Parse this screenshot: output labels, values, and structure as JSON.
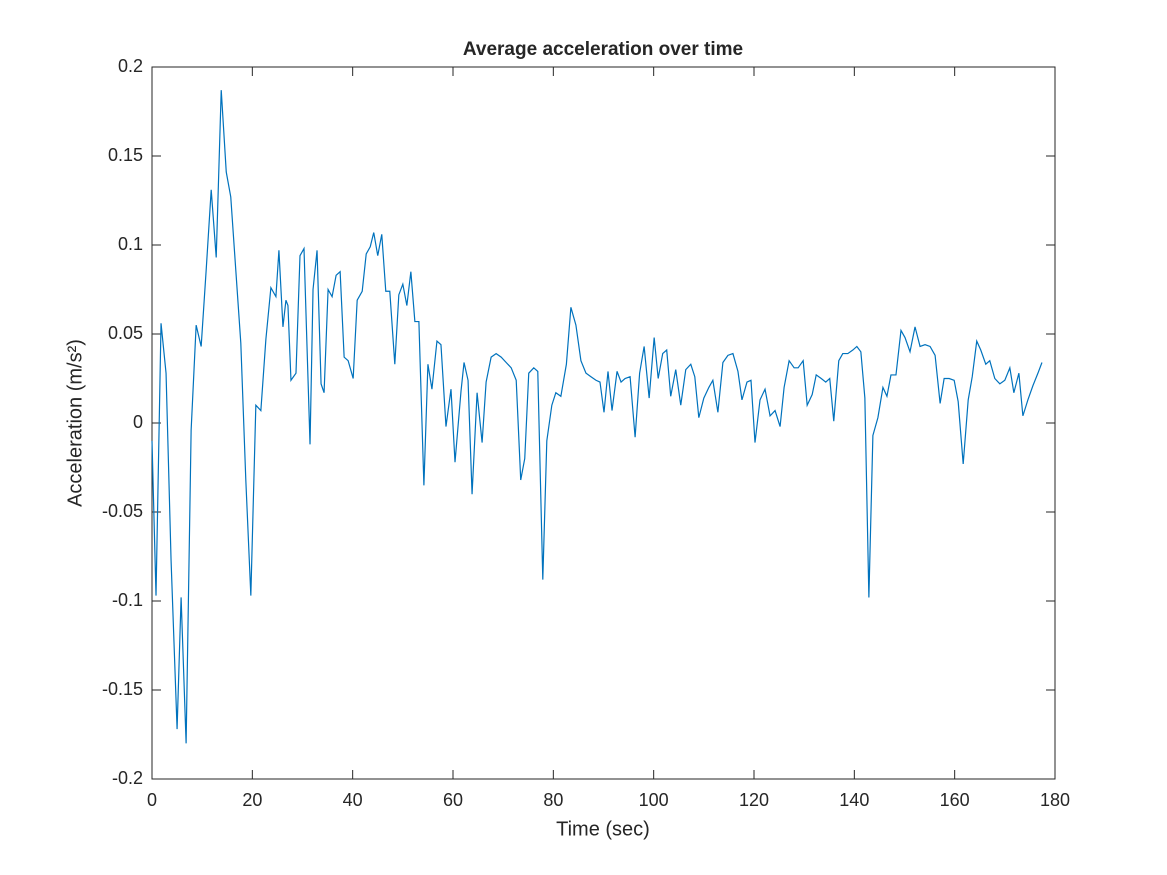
{
  "chart_data": {
    "type": "line",
    "title": "Average acceleration over time",
    "x_label": "Time (sec)",
    "y_label": "Acceleration (m/s²)",
    "xlim": [
      0,
      180
    ],
    "xticks": [
      0,
      20,
      40,
      60,
      80,
      100,
      120,
      140,
      160,
      180
    ],
    "ylim": [
      -0.2,
      0.2
    ],
    "yticks": [
      -0.2,
      -0.15,
      -0.1,
      -0.05,
      0,
      0.05,
      0.1,
      0.15,
      0.2
    ],
    "grid": false,
    "series": [
      {
        "color": "#0072bd",
        "x": [
          0,
          0.8,
          1.8,
          2.8,
          3.8,
          5,
          5.8,
          6.8,
          7.8,
          8.8,
          9.8,
          10.8,
          11.8,
          12.8,
          13.8,
          14.8,
          15.7,
          16.7,
          17.7,
          18.7,
          19.7,
          20.7,
          21.7,
          22.7,
          23.7,
          24.7,
          25.3,
          26.1,
          26.7,
          27.1,
          27.7,
          28.7,
          29.5,
          30.3,
          31.5,
          32.1,
          32.9,
          33.7,
          34.3,
          35.1,
          35.9,
          36.7,
          37.5,
          38.3,
          39.1,
          40.1,
          40.9,
          41.9,
          42.7,
          43.5,
          44.2,
          45,
          45.8,
          46.6,
          47.4,
          48.4,
          49.2,
          50,
          50.8,
          51.6,
          52.4,
          53.2,
          54.2,
          55,
          55.8,
          56.8,
          57.6,
          58.6,
          59.6,
          60.4,
          61.6,
          62.2,
          63,
          63.8,
          64.8,
          65.8,
          66.6,
          67.6,
          68.6,
          69.6,
          70.6,
          71.6,
          72.6,
          73.5,
          74.3,
          75.1,
          76.1,
          76.9,
          77.9,
          78.7,
          79.7,
          80.5,
          81.5,
          82.6,
          83.5,
          84.5,
          85.5,
          86.5,
          87.5,
          88.5,
          89.3,
          90.1,
          90.9,
          91.7,
          92.7,
          93.5,
          94.3,
          95.3,
          96.3,
          97.2,
          98.1,
          99.1,
          100.1,
          100.9,
          101.8,
          102.6,
          103.4,
          104.4,
          105.4,
          106.4,
          107.4,
          108.2,
          109,
          110,
          111,
          111.8,
          112.8,
          113.8,
          114.8,
          115.8,
          116.8,
          117.6,
          118.6,
          119.4,
          120.2,
          121.2,
          122.2,
          123.2,
          124.2,
          125.2,
          126,
          127,
          128,
          128.8,
          129.8,
          130.6,
          131.6,
          132.4,
          133.4,
          134.3,
          135.1,
          135.9,
          136.9,
          137.7,
          138.7,
          139.7,
          140.5,
          141.3,
          142.1,
          142.9,
          143.7,
          144.7,
          145.7,
          146.5,
          147.3,
          148.3,
          149.3,
          150.1,
          151.1,
          152.1,
          153.1,
          154.1,
          155.1,
          156.1,
          157.1,
          157.9,
          158.9,
          159.9,
          160.7,
          161.7,
          162.7,
          163.5,
          164.4,
          165.2,
          166.2,
          167,
          168,
          169,
          170,
          171,
          171.8,
          172.8,
          173.6,
          174.6,
          175.6,
          176.6,
          177.4
        ],
        "values": [
          -0.01,
          -0.097,
          0.056,
          0.028,
          -0.077,
          -0.172,
          -0.098,
          -0.18,
          -0.004,
          0.055,
          0.043,
          0.086,
          0.131,
          0.093,
          0.187,
          0.141,
          0.127,
          0.086,
          0.045,
          -0.032,
          -0.097,
          0.01,
          0.007,
          0.047,
          0.076,
          0.071,
          0.097,
          0.054,
          0.069,
          0.066,
          0.024,
          0.028,
          0.094,
          0.098,
          -0.012,
          0.075,
          0.097,
          0.022,
          0.017,
          0.075,
          0.071,
          0.083,
          0.085,
          0.037,
          0.035,
          0.025,
          0.069,
          0.074,
          0.095,
          0.099,
          0.107,
          0.094,
          0.106,
          0.074,
          0.074,
          0.033,
          0.072,
          0.078,
          0.066,
          0.085,
          0.057,
          0.057,
          -0.035,
          0.033,
          0.019,
          0.046,
          0.044,
          -0.002,
          0.019,
          -0.022,
          0.018,
          0.034,
          0.024,
          -0.04,
          0.017,
          -0.011,
          0.023,
          0.037,
          0.039,
          0.037,
          0.034,
          0.031,
          0.024,
          -0.032,
          -0.02,
          0.028,
          0.031,
          0.029,
          -0.088,
          -0.01,
          0.01,
          0.017,
          0.015,
          0.033,
          0.065,
          0.055,
          0.035,
          0.028,
          0.026,
          0.024,
          0.023,
          0.006,
          0.029,
          0.007,
          0.029,
          0.023,
          0.025,
          0.026,
          -0.008,
          0.028,
          0.043,
          0.014,
          0.048,
          0.025,
          0.039,
          0.041,
          0.015,
          0.03,
          0.01,
          0.03,
          0.033,
          0.026,
          0.003,
          0.014,
          0.02,
          0.024,
          0.006,
          0.034,
          0.038,
          0.039,
          0.029,
          0.013,
          0.023,
          0.024,
          -0.011,
          0.013,
          0.019,
          0.004,
          0.007,
          -0.002,
          0.02,
          0.035,
          0.031,
          0.031,
          0.035,
          0.01,
          0.016,
          0.027,
          0.025,
          0.023,
          0.025,
          0.001,
          0.035,
          0.039,
          0.039,
          0.041,
          0.043,
          0.04,
          0.014,
          -0.098,
          -0.007,
          0.003,
          0.02,
          0.015,
          0.027,
          0.027,
          0.052,
          0.048,
          0.04,
          0.054,
          0.043,
          0.044,
          0.043,
          0.038,
          0.011,
          0.025,
          0.025,
          0.024,
          0.012,
          -0.023,
          0.013,
          0.026,
          0.046,
          0.041,
          0.033,
          0.035,
          0.025,
          0.022,
          0.024,
          0.031,
          0.017,
          0.028,
          0.004,
          0.013,
          0.021,
          0.028,
          0.034
        ]
      }
    ]
  }
}
